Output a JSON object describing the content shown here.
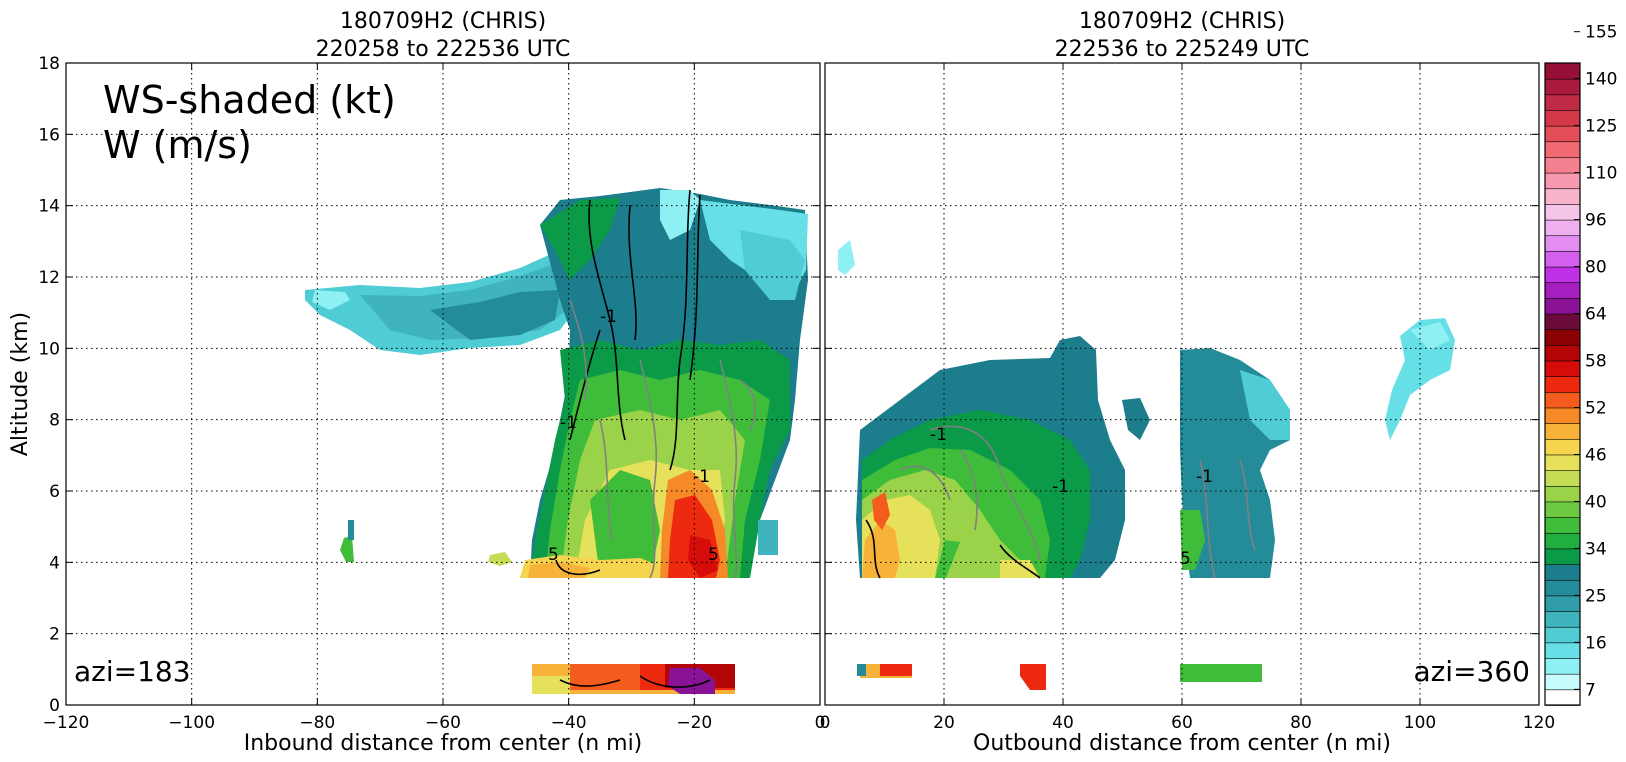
{
  "chart_data": [
    {
      "type": "heatmap",
      "title_line1": "180709H2 (CHRIS)",
      "title_line2": "220258 to 222536 UTC",
      "xlabel": "Inbound distance from center (n mi)",
      "ylabel": "Altitude (km)",
      "xlim": [
        -120,
        0
      ],
      "ylim": [
        0,
        18
      ],
      "xticks": [
        -120,
        -100,
        -80,
        -60,
        -40,
        -20,
        0
      ],
      "yticks": [
        0,
        2,
        4,
        6,
        8,
        10,
        12,
        14,
        16,
        18
      ],
      "grid": true,
      "annotation_line1": "WS-shaded (kt)",
      "annotation_line2": "W (m/s)",
      "azi_label": "azi=183",
      "contour_labels": [
        "-1",
        "5"
      ]
    },
    {
      "type": "heatmap",
      "title_line1": "180709H2 (CHRIS)",
      "title_line2": "222536 to 225249 UTC",
      "xlabel": "Outbound distance from center (n mi)",
      "xlim": [
        0,
        120
      ],
      "ylim": [
        0,
        18
      ],
      "xticks": [
        0,
        20,
        40,
        60,
        80,
        100,
        120
      ],
      "yticks": [
        0,
        2,
        4,
        6,
        8,
        10,
        12,
        14,
        16,
        18
      ],
      "grid": true,
      "azi_label": "azi=360",
      "contour_labels": [
        "-1",
        "5"
      ]
    }
  ],
  "colorbar": {
    "tick_labels": [
      "7",
      "16",
      "25",
      "34",
      "40",
      "46",
      "52",
      "58",
      "64",
      "80",
      "96",
      "110",
      "125",
      "140",
      "155"
    ],
    "colors": [
      "#ffffff",
      "#c8fbfb",
      "#8ef0f3",
      "#66dfe6",
      "#4fccd4",
      "#3fb4bf",
      "#2f9ca8",
      "#248c99",
      "#1c7d8c",
      "#0a9a48",
      "#1fae3f",
      "#3fbd3a",
      "#6cc941",
      "#9ad34a",
      "#c5dd55",
      "#e6e15a",
      "#f5d54e",
      "#f7b23a",
      "#f78a28",
      "#f35c1c",
      "#ed2a10",
      "#d50c0a",
      "#b30505",
      "#8b0000",
      "#6a0b3a",
      "#8a1296",
      "#a51ec0",
      "#c030e6",
      "#d560f0",
      "#e58cf2",
      "#efb0f0",
      "#f4c5e8",
      "#f7b4cc",
      "#f799b0",
      "#f5808f",
      "#f26a72",
      "#e54e58",
      "#d33848",
      "#bf2a44",
      "#a91a3c",
      "#960f37"
    ]
  }
}
